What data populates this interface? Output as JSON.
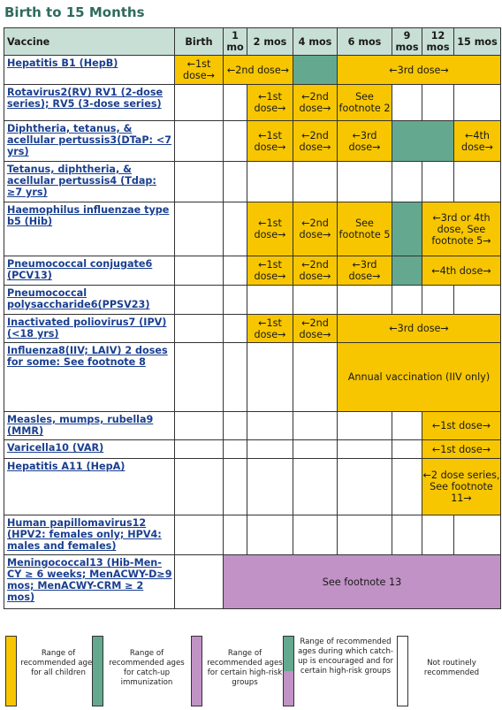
{
  "title": "Birth to 15 Months",
  "headers": {
    "vaccine": "Vaccine",
    "cols": [
      "Birth",
      "1 mo",
      "2 mos",
      "4 mos",
      "6 mos",
      "9 mos",
      "12 mos",
      "15 mos"
    ]
  },
  "colors": {
    "yellow": "#f7c600",
    "green": "#64a890",
    "purple": "#c192c6",
    "white": "#ffffff"
  },
  "rows": [
    {
      "vaccine": "Hepatitis B1 (HepB)",
      "cells": [
        {
          "text": "←1st dose→",
          "color": "yellow",
          "span": 1
        },
        {
          "text": "←2nd dose→",
          "color": "yellow",
          "span": 2
        },
        {
          "text": "",
          "color": "green",
          "span": 1
        },
        {
          "text": "←3rd dose→",
          "color": "yellow",
          "span": 4
        }
      ]
    },
    {
      "vaccine": "Rotavirus2(RV) RV1 (2-dose series); RV5 (3-dose series)",
      "cells": [
        {
          "text": "",
          "color": "white",
          "span": 1
        },
        {
          "text": "",
          "color": "white",
          "span": 1
        },
        {
          "text": "←1st dose→",
          "color": "yellow",
          "span": 1
        },
        {
          "text": "←2nd dose→",
          "color": "yellow",
          "span": 1
        },
        {
          "text": "See footnote 2",
          "color": "yellow",
          "span": 1
        },
        {
          "text": "",
          "color": "white",
          "span": 1
        },
        {
          "text": "",
          "color": "white",
          "span": 1
        },
        {
          "text": "",
          "color": "white",
          "span": 1
        }
      ]
    },
    {
      "vaccine": "Diphtheria, tetanus, & acellular pertussis3(DTaP: <7 yrs)",
      "cells": [
        {
          "text": "",
          "color": "white",
          "span": 1
        },
        {
          "text": "",
          "color": "white",
          "span": 1
        },
        {
          "text": "←1st dose→",
          "color": "yellow",
          "span": 1
        },
        {
          "text": "←2nd dose→",
          "color": "yellow",
          "span": 1
        },
        {
          "text": "←3rd dose→",
          "color": "yellow",
          "span": 1
        },
        {
          "text": "",
          "color": "green",
          "span": 2
        },
        {
          "text": "←4th dose→",
          "color": "yellow",
          "span": 1
        }
      ]
    },
    {
      "vaccine": "Tetanus, diphtheria, & acellular pertussis4 (Tdap: ≥7 yrs)",
      "cells": [
        {
          "text": "",
          "color": "white",
          "span": 1
        },
        {
          "text": "",
          "color": "white",
          "span": 1
        },
        {
          "text": "",
          "color": "white",
          "span": 1
        },
        {
          "text": "",
          "color": "white",
          "span": 1
        },
        {
          "text": "",
          "color": "white",
          "span": 1
        },
        {
          "text": "",
          "color": "white",
          "span": 1
        },
        {
          "text": "",
          "color": "white",
          "span": 1
        },
        {
          "text": "",
          "color": "white",
          "span": 1
        }
      ]
    },
    {
      "vaccine": "Haemophilus influenzae type b5 (Hib)",
      "cells": [
        {
          "text": "",
          "color": "white",
          "span": 1
        },
        {
          "text": "",
          "color": "white",
          "span": 1
        },
        {
          "text": "←1st dose→",
          "color": "yellow",
          "span": 1
        },
        {
          "text": "←2nd dose→",
          "color": "yellow",
          "span": 1
        },
        {
          "text": "See footnote 5",
          "color": "yellow",
          "span": 1
        },
        {
          "text": "",
          "color": "green",
          "span": 1
        },
        {
          "text": "←3rd or 4th dose, See footnote 5→",
          "color": "yellow",
          "span": 2
        }
      ]
    },
    {
      "vaccine": "Pneumococcal conjugate6 (PCV13)",
      "cells": [
        {
          "text": "",
          "color": "white",
          "span": 1
        },
        {
          "text": "",
          "color": "white",
          "span": 1
        },
        {
          "text": "←1st dose→",
          "color": "yellow",
          "span": 1
        },
        {
          "text": "←2nd dose→",
          "color": "yellow",
          "span": 1
        },
        {
          "text": "←3rd dose→",
          "color": "yellow",
          "span": 1
        },
        {
          "text": "",
          "color": "green",
          "span": 1
        },
        {
          "text": "←4th dose→",
          "color": "yellow",
          "span": 2
        }
      ]
    },
    {
      "vaccine": "Pneumococcal polysaccharide6(PPSV23)",
      "cells": [
        {
          "text": "",
          "color": "white",
          "span": 1
        },
        {
          "text": "",
          "color": "white",
          "span": 1
        },
        {
          "text": "",
          "color": "white",
          "span": 1
        },
        {
          "text": "",
          "color": "white",
          "span": 1
        },
        {
          "text": "",
          "color": "white",
          "span": 1
        },
        {
          "text": "",
          "color": "white",
          "span": 1
        },
        {
          "text": "",
          "color": "white",
          "span": 1
        },
        {
          "text": "",
          "color": "white",
          "span": 1
        }
      ]
    },
    {
      "vaccine": "Inactivated poliovirus7 (IPV)(<18 yrs)",
      "cells": [
        {
          "text": "",
          "color": "white",
          "span": 1
        },
        {
          "text": "",
          "color": "white",
          "span": 1
        },
        {
          "text": "←1st dose→",
          "color": "yellow",
          "span": 1
        },
        {
          "text": "←2nd dose→",
          "color": "yellow",
          "span": 1
        },
        {
          "text": "←3rd dose→",
          "color": "yellow",
          "span": 4
        }
      ]
    },
    {
      "vaccine": "Influenza8(IIV; LAIV) 2 doses for some: See footnote 8",
      "cells": [
        {
          "text": "",
          "color": "white",
          "span": 1
        },
        {
          "text": "",
          "color": "white",
          "span": 1
        },
        {
          "text": "",
          "color": "white",
          "span": 1
        },
        {
          "text": "",
          "color": "white",
          "span": 1
        },
        {
          "text": "Annual vaccination (IIV only)",
          "color": "yellow",
          "span": 4
        }
      ]
    },
    {
      "vaccine": "Measles, mumps, rubella9 (MMR)",
      "cells": [
        {
          "text": "",
          "color": "white",
          "span": 1
        },
        {
          "text": "",
          "color": "white",
          "span": 1
        },
        {
          "text": "",
          "color": "white",
          "span": 1
        },
        {
          "text": "",
          "color": "white",
          "span": 1
        },
        {
          "text": "",
          "color": "white",
          "span": 1
        },
        {
          "text": "",
          "color": "white",
          "span": 1
        },
        {
          "text": "←1st dose→",
          "color": "yellow",
          "span": 2
        }
      ]
    },
    {
      "vaccine": "Varicella10 (VAR)",
      "cells": [
        {
          "text": "",
          "color": "white",
          "span": 1
        },
        {
          "text": "",
          "color": "white",
          "span": 1
        },
        {
          "text": "",
          "color": "white",
          "span": 1
        },
        {
          "text": "",
          "color": "white",
          "span": 1
        },
        {
          "text": "",
          "color": "white",
          "span": 1
        },
        {
          "text": "",
          "color": "white",
          "span": 1
        },
        {
          "text": "←1st dose→",
          "color": "yellow",
          "span": 2
        }
      ]
    },
    {
      "vaccine": "Hepatitis A11 (HepA)",
      "cells": [
        {
          "text": "",
          "color": "white",
          "span": 1
        },
        {
          "text": "",
          "color": "white",
          "span": 1
        },
        {
          "text": "",
          "color": "white",
          "span": 1
        },
        {
          "text": "",
          "color": "white",
          "span": 1
        },
        {
          "text": "",
          "color": "white",
          "span": 1
        },
        {
          "text": "",
          "color": "white",
          "span": 1
        },
        {
          "text": "←2 dose series, See footnote 11→",
          "color": "yellow",
          "span": 2
        }
      ]
    },
    {
      "vaccine": "Human papillomavirus12 (HPV2: females only; HPV4: males and females)",
      "cells": [
        {
          "text": "",
          "color": "white",
          "span": 1
        },
        {
          "text": "",
          "color": "white",
          "span": 1
        },
        {
          "text": "",
          "color": "white",
          "span": 1
        },
        {
          "text": "",
          "color": "white",
          "span": 1
        },
        {
          "text": "",
          "color": "white",
          "span": 1
        },
        {
          "text": "",
          "color": "white",
          "span": 1
        },
        {
          "text": "",
          "color": "white",
          "span": 1
        },
        {
          "text": "",
          "color": "white",
          "span": 1
        }
      ]
    },
    {
      "vaccine": "Meningococcal13 (Hib-Men-CY ≥ 6 weeks; MenACWY-D≥9 mos; MenACWY-CRM ≥ 2 mos)",
      "cells": [
        {
          "text": "",
          "color": "white",
          "span": 1
        },
        {
          "text": "See footnote 13",
          "color": "purple",
          "span": 7
        }
      ]
    }
  ],
  "legend": [
    {
      "text": "Range of recommended ages for all children",
      "color": "yellow"
    },
    {
      "text": "Range of recommended ages for catch-up immunization",
      "color": "green"
    },
    {
      "text": "Range of recommended ages for certain high-risk groups",
      "color": "purple"
    },
    {
      "text": "Range of recommended ages during which catch-up is encouraged and for certain high-risk groups",
      "color": "green-purple"
    },
    {
      "text": "Not routinely recommended",
      "color": "white"
    }
  ]
}
